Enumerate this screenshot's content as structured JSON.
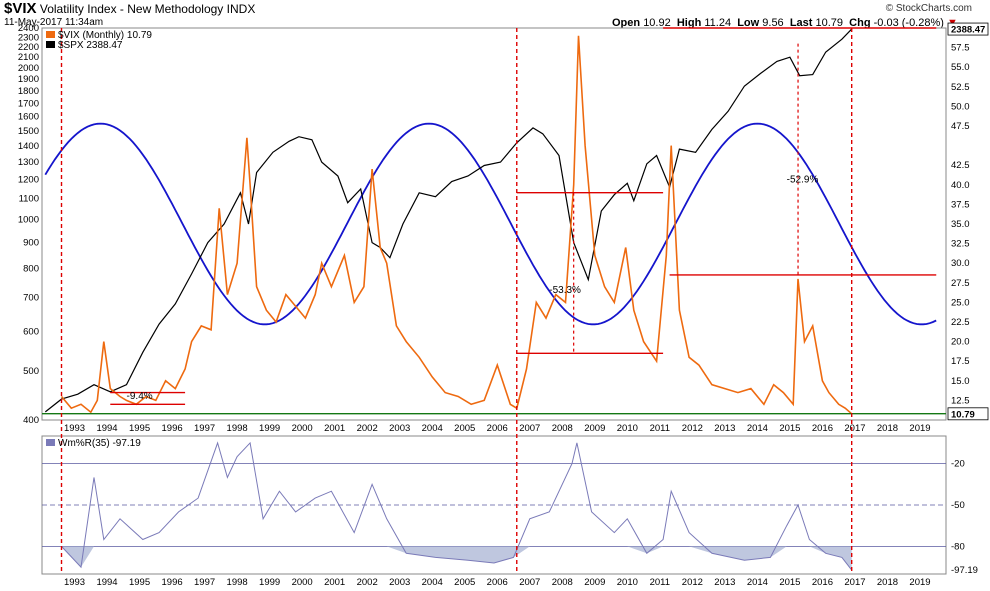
{
  "header": {
    "symbol": "$VIX",
    "title": "Volatility Index - New Methodology",
    "exchange": "INDX",
    "date": "11-May-2017 11:34am",
    "brand": "© StockCharts.com",
    "ohlc": {
      "open_label": "Open",
      "open": "10.92",
      "high_label": "High",
      "high": "11.24",
      "low_label": "Low",
      "low": "9.56",
      "last_label": "Last",
      "last": "10.79",
      "chg_label": "Chg",
      "chg": "-0.03 (-0.28%)"
    }
  },
  "legend": {
    "vix": "$VIX (Monthly) 10.79",
    "spx": "$SPX 2388.47",
    "williams": "Wm%R(35) -97.19"
  },
  "colors": {
    "vix": "#ee6a10",
    "spx": "#000000",
    "cycle": "#1515cc",
    "support": "#147814",
    "level": "#dd0000",
    "williams_line": "#7a7ab8",
    "williams_fill": "#b8c1dc"
  },
  "chart_data": {
    "type": "line",
    "x_labels": [
      "1993",
      "1994",
      "1995",
      "1996",
      "1997",
      "1998",
      "1999",
      "2000",
      "2001",
      "2002",
      "2003",
      "2004",
      "2005",
      "2006",
      "2007",
      "2008",
      "2009",
      "2010",
      "2011",
      "2012",
      "2013",
      "2014",
      "2015",
      "2016",
      "2017",
      "2018",
      "2019"
    ],
    "xlim": [
      1992.4,
      2020.2
    ],
    "left_axis": {
      "scale": "log",
      "ticks": [
        "400",
        "500",
        "600",
        "700",
        "800",
        "900",
        "1000",
        "1100",
        "1200",
        "1300",
        "1400",
        "1500",
        "1600",
        "1700",
        "1800",
        "1900",
        "2000",
        "2100",
        "2200",
        "2300",
        "2400"
      ],
      "range": [
        400,
        2400
      ]
    },
    "right_axis": {
      "ticks": [
        "12.5",
        "15.0",
        "17.5",
        "20.0",
        "22.5",
        "25.0",
        "27.5",
        "30.0",
        "32.5",
        "35.0",
        "37.5",
        "40.0",
        "42.5",
        "47.5",
        "50.0",
        "52.5",
        "55.0",
        "57.5"
      ],
      "range": [
        10,
        60
      ],
      "last_vix_label": "10.79",
      "last_spx_label": "2388.47"
    },
    "series": [
      {
        "name": "$VIX (Monthly) 10.79",
        "axis": "right",
        "x": [
          1993.0,
          1993.3,
          1993.6,
          1993.9,
          1994.1,
          1994.3,
          1994.5,
          1994.8,
          1995.0,
          1995.3,
          1995.6,
          1995.9,
          1996.2,
          1996.5,
          1996.8,
          1997.0,
          1997.3,
          1997.6,
          1997.85,
          1998.1,
          1998.4,
          1998.7,
          1998.8,
          1999.0,
          1999.3,
          1999.6,
          1999.9,
          2000.2,
          2000.5,
          2000.8,
          2001.0,
          2001.3,
          2001.7,
          2002.0,
          2002.3,
          2002.55,
          2002.8,
          2003.0,
          2003.3,
          2003.6,
          2004.0,
          2004.4,
          2004.8,
          2005.2,
          2005.6,
          2006.0,
          2006.4,
          2006.8,
          2007.0,
          2007.3,
          2007.6,
          2007.9,
          2008.2,
          2008.5,
          2008.75,
          2008.9,
          2009.1,
          2009.4,
          2009.7,
          2010.0,
          2010.35,
          2010.6,
          2010.9,
          2011.3,
          2011.6,
          2011.75,
          2012.0,
          2012.3,
          2012.6,
          2013.0,
          2013.4,
          2013.8,
          2014.2,
          2014.6,
          2014.9,
          2015.2,
          2015.5,
          2015.65,
          2015.85,
          2016.1,
          2016.4,
          2016.6,
          2016.9,
          2017.1,
          2017.3
        ],
        "values": [
          13.0,
          11.5,
          12.0,
          11.0,
          12.5,
          20.0,
          14.0,
          13.0,
          12.5,
          12.0,
          13.0,
          12.5,
          15.0,
          14.0,
          16.5,
          20.0,
          22.0,
          21.5,
          37.0,
          26.0,
          30.0,
          46.0,
          40.0,
          27.0,
          24.0,
          22.5,
          26.0,
          24.5,
          23.0,
          26.0,
          30.0,
          27.0,
          31.0,
          25.0,
          27.0,
          42.0,
          32.0,
          30.0,
          22.0,
          20.0,
          18.0,
          15.5,
          13.5,
          13.0,
          12.0,
          12.5,
          17.0,
          12.0,
          11.5,
          16.5,
          25.0,
          23.0,
          26.0,
          25.0,
          40.0,
          59.0,
          45.0,
          31.0,
          27.0,
          25.0,
          32.0,
          24.0,
          20.0,
          17.5,
          31.0,
          45.0,
          24.0,
          18.0,
          17.0,
          14.5,
          14.0,
          13.5,
          14.0,
          12.0,
          14.5,
          13.5,
          12.0,
          28.0,
          20.0,
          22.0,
          15.0,
          13.5,
          12.0,
          11.5,
          10.79
        ]
      },
      {
        "name": "$SPX 2388.47",
        "axis": "left",
        "x": [
          1992.5,
          1993.0,
          1993.5,
          1994.0,
          1994.5,
          1995.0,
          1995.5,
          1996.0,
          1996.5,
          1997.0,
          1997.5,
          1998.0,
          1998.5,
          1998.75,
          1999.0,
          1999.5,
          2000.0,
          2000.3,
          2000.7,
          2001.0,
          2001.5,
          2001.8,
          2002.2,
          2002.55,
          2002.8,
          2003.1,
          2003.5,
          2004.0,
          2004.5,
          2005.0,
          2005.5,
          2006.0,
          2006.5,
          2007.0,
          2007.5,
          2007.8,
          2008.3,
          2008.75,
          2009.2,
          2009.6,
          2010.0,
          2010.4,
          2010.6,
          2011.0,
          2011.3,
          2011.7,
          2012.0,
          2012.5,
          2013.0,
          2013.5,
          2014.0,
          2014.5,
          2015.0,
          2015.4,
          2015.7,
          2016.1,
          2016.5,
          2017.0,
          2017.3
        ],
        "values": [
          415,
          440,
          450,
          470,
          455,
          470,
          545,
          620,
          680,
          780,
          900,
          980,
          1130,
          980,
          1240,
          1360,
          1430,
          1460,
          1440,
          1300,
          1220,
          1080,
          1150,
          900,
          880,
          840,
          980,
          1130,
          1110,
          1190,
          1220,
          1280,
          1300,
          1420,
          1520,
          1480,
          1340,
          900,
          760,
          1040,
          1120,
          1180,
          1090,
          1290,
          1340,
          1160,
          1380,
          1360,
          1510,
          1640,
          1840,
          1950,
          2060,
          2100,
          1930,
          1940,
          2150,
          2280,
          2388.47
        ]
      },
      {
        "name": "Wm%R(35) -97.19",
        "panel": "lower",
        "x": [
          1993.0,
          1993.6,
          1994.0,
          1994.3,
          1994.8,
          1995.5,
          1996.0,
          1996.6,
          1997.2,
          1997.8,
          1998.1,
          1998.4,
          1998.8,
          1999.2,
          1999.7,
          2000.2,
          2000.8,
          2001.3,
          2002.0,
          2002.55,
          2003.0,
          2003.6,
          2004.5,
          2005.5,
          2006.3,
          2006.9,
          2007.4,
          2008.0,
          2008.7,
          2008.85,
          2009.3,
          2010.0,
          2010.4,
          2011.0,
          2011.5,
          2011.75,
          2012.3,
          2013.0,
          2014.0,
          2014.8,
          2015.3,
          2015.65,
          2016.0,
          2016.5,
          2017.0,
          2017.3
        ],
        "values": [
          -80,
          -95,
          -30,
          -75,
          -60,
          -75,
          -70,
          -55,
          -45,
          -5,
          -30,
          -15,
          -5,
          -60,
          -40,
          -55,
          -45,
          -40,
          -70,
          -35,
          -60,
          -85,
          -88,
          -90,
          -92,
          -88,
          -60,
          -55,
          -20,
          -5,
          -55,
          -70,
          -60,
          -85,
          -75,
          -40,
          -70,
          -85,
          -90,
          -88,
          -65,
          -50,
          -75,
          -85,
          -88,
          -97.19
        ]
      }
    ],
    "lower_panel": {
      "ticks": [
        "-20",
        "-50",
        "-80",
        "-97.19"
      ],
      "range": [
        -100,
        0
      ]
    },
    "annotations": [
      "-9.4%",
      "-53.3%",
      "-52.9%"
    ]
  }
}
